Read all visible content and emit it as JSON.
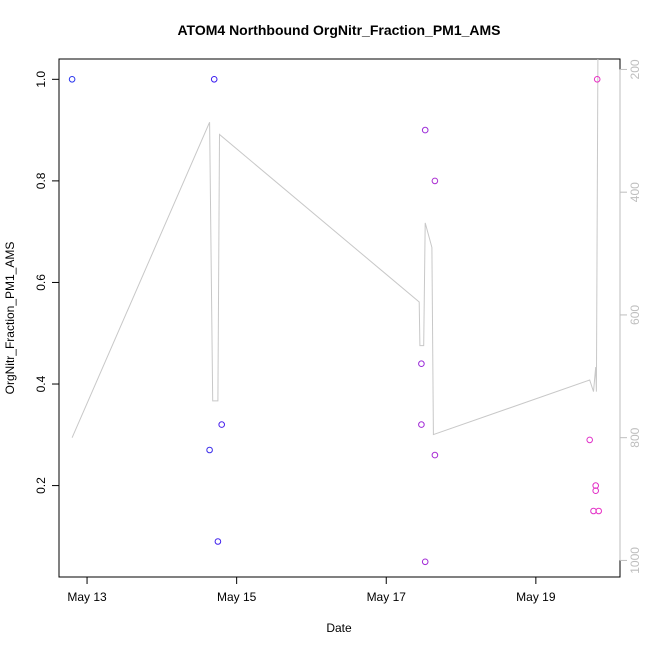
{
  "chart_data": {
    "type": "scatter",
    "title": "ATOM4 Northbound OrgNitr_Fraction_PM1_AMS",
    "xlabel": "Date",
    "ylabel": "OrgNitr_Fraction_PM1_AMS",
    "x_ticks": [
      {
        "date": "2018-05-13",
        "label": "May 13"
      },
      {
        "date": "2018-05-15",
        "label": "May 15"
      },
      {
        "date": "2018-05-17",
        "label": "May 17"
      },
      {
        "date": "2018-05-19",
        "label": "May 19"
      }
    ],
    "xlim": [
      "2018-05-12 15:00",
      "2018-05-20 03:00"
    ],
    "ylim": [
      0.02,
      1.04
    ],
    "y_ticks": [
      0.2,
      0.4,
      0.6,
      0.8,
      1.0
    ],
    "y_tick_labels": [
      "0.2",
      "0.4",
      "0.6",
      "0.8",
      "1.0"
    ],
    "y2_ticks": [
      200,
      400,
      600,
      800,
      1000
    ],
    "y2_tick_labels": [
      "200",
      "400",
      "600",
      "800",
      "1000"
    ],
    "y2lim": [
      1027,
      183
    ],
    "grid": false,
    "series": [
      {
        "kind": "points",
        "color_note": "point colour shifts from blue to magenta along the track",
        "points": [
          {
            "x": "2018-05-12 19:12",
            "y": 1.0,
            "color": "#2a36ee"
          },
          {
            "x": "2018-05-14 15:19",
            "y": 0.27,
            "color": "#3a2cea"
          },
          {
            "x": "2018-05-14 16:48",
            "y": 1.0,
            "color": "#3b1cf0"
          },
          {
            "x": "2018-05-14 18:00",
            "y": 0.09,
            "color": "#4224ee"
          },
          {
            "x": "2018-05-14 19:12",
            "y": 0.32,
            "color": "#4a22ec"
          },
          {
            "x": "2018-05-17 11:17",
            "y": 0.44,
            "color": "#9a2ad8"
          },
          {
            "x": "2018-05-17 11:17",
            "y": 0.32,
            "color": "#a22ad6"
          },
          {
            "x": "2018-05-17 12:29",
            "y": 0.9,
            "color": "#9c2cd8"
          },
          {
            "x": "2018-05-17 12:29",
            "y": 0.05,
            "color": "#a22ad6"
          },
          {
            "x": "2018-05-17 15:36",
            "y": 0.26,
            "color": "#a82cd4"
          },
          {
            "x": "2018-05-17 15:36",
            "y": 0.8,
            "color": "#aa2cd2"
          },
          {
            "x": "2018-05-19 17:17",
            "y": 0.29,
            "color": "#e030c8"
          },
          {
            "x": "2018-05-19 18:29",
            "y": 0.15,
            "color": "#e030c8"
          },
          {
            "x": "2018-05-19 19:12",
            "y": 0.2,
            "color": "#e22ec6"
          },
          {
            "x": "2018-05-19 19:12",
            "y": 0.19,
            "color": "#e22ec6"
          },
          {
            "x": "2018-05-19 19:41",
            "y": 1.0,
            "color": "#e830c4"
          },
          {
            "x": "2018-05-19 20:10",
            "y": 0.15,
            "color": "#e830c4"
          }
        ]
      },
      {
        "kind": "line",
        "axis": "right",
        "color": "#c8c8c8",
        "points": [
          {
            "x": "2018-05-12 19:12",
            "y": 800
          },
          {
            "x": "2018-05-14 15:19",
            "y": 286
          },
          {
            "x": "2018-05-14 16:19",
            "y": 740
          },
          {
            "x": "2018-05-14 18:00",
            "y": 740
          },
          {
            "x": "2018-05-14 18:29",
            "y": 306
          },
          {
            "x": "2018-05-17 10:34",
            "y": 579
          },
          {
            "x": "2018-05-17 10:48",
            "y": 650
          },
          {
            "x": "2018-05-17 12:00",
            "y": 650
          },
          {
            "x": "2018-05-17 12:29",
            "y": 450
          },
          {
            "x": "2018-05-17 14:38",
            "y": 490
          },
          {
            "x": "2018-05-17 15:07",
            "y": 795
          },
          {
            "x": "2018-05-19 17:17",
            "y": 706
          },
          {
            "x": "2018-05-19 18:29",
            "y": 725
          },
          {
            "x": "2018-05-19 19:12",
            "y": 685
          },
          {
            "x": "2018-05-19 19:26",
            "y": 725
          },
          {
            "x": "2018-05-19 19:55",
            "y": 183
          }
        ]
      }
    ]
  }
}
